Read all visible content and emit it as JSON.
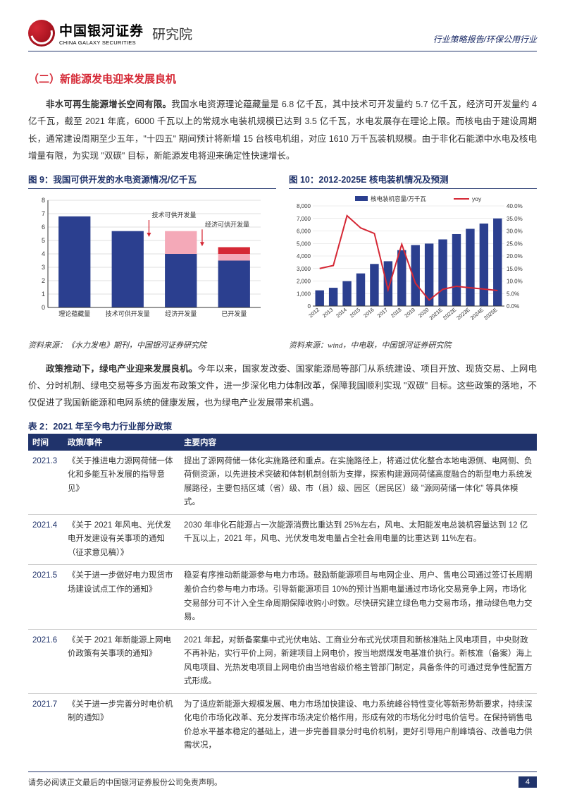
{
  "header": {
    "logo_cn": "中国银河证券",
    "logo_en": "CHINA GALAXY SECURITIES",
    "institute": "研究院",
    "right": "行业策略报告/环保公用行业"
  },
  "section_title": "（二）新能源发电迎来发展良机",
  "para1_lead": "非水可再生能源增长空间有限。",
  "para1_body": "我国水电资源理论蕴藏量是 6.8 亿千瓦，其中技术可开发量约 5.7 亿千瓦，经济可开发量约 4 亿千瓦，截至 2021 年底，6000 千瓦以上的常规水电装机规模已达到 3.5 亿千瓦，水电发展存在理论上限。而核电由于建设周期长，通常建设周期至少五年，\"十四五\" 期间预计将新增 15 台核电机组，对应 1610 万千瓦装机规模。由于非化石能源中水电及核电增量有限，为实现 \"双碳\" 目标，新能源发电将迎来确定性快速增长。",
  "chart9": {
    "title": "图 9：我国可供开发的水电资源情况/亿千瓦",
    "type": "bar",
    "categories": [
      "理论蕴藏量",
      "技术可供开发量",
      "经济开发量",
      "已开发量"
    ],
    "navy_values": [
      6.8,
      5.7,
      4.0,
      3.5
    ],
    "pink_values": [
      0,
      0,
      1.7,
      0.5
    ],
    "red_values": [
      0,
      0,
      0,
      0.5
    ],
    "arrow_labels": [
      "技术可供开发量",
      "经济可供开发量"
    ],
    "colors": {
      "navy": "#2b3f8f",
      "pink": "#f4a9b8",
      "red": "#d52835",
      "axis": "#333333",
      "grid": "#bfbfbf"
    },
    "ylim": [
      0,
      8
    ],
    "ytick_step": 1,
    "source": "资料来源：《水力发电》期刊，中国银河证券研究院"
  },
  "chart10": {
    "title": "图 10：2012-2025E 核电装机情况及预测",
    "type": "bar+line",
    "years": [
      "2012",
      "2013",
      "2014",
      "2015",
      "2016",
      "2017",
      "2018",
      "2019",
      "2020",
      "2021E",
      "2022E",
      "2023E",
      "2024E",
      "2025E"
    ],
    "bar_values": [
      1257,
      1461,
      1988,
      2608,
      3364,
      3582,
      4466,
      4874,
      4989,
      5326,
      5748,
      6170,
      6592,
      7000
    ],
    "yoy_values": [
      15.0,
      16.2,
      36.1,
      31.2,
      29.0,
      6.5,
      24.7,
      9.1,
      2.4,
      6.7,
      7.9,
      7.3,
      6.8,
      6.2
    ],
    "legend": {
      "bar": "核电装机容量/万千瓦",
      "line": "yoy"
    },
    "colors": {
      "bar": "#2b3f8f",
      "line": "#d52835",
      "axis": "#333333",
      "grid": "#d9d9d9"
    },
    "ylim_left": [
      0,
      8000
    ],
    "ytick_left_step": 1000,
    "ylim_right": [
      0,
      40
    ],
    "ytick_right_step": 5,
    "source": "资料来源：wind，中电联，中国银河证券研究院"
  },
  "para2_lead": "政策推动下，绿电产业迎来发展良机。",
  "para2_body": "今年以来，国家发改委、国家能源局等部门从系统建设、项目开放、现货交易、上网电价、分时机制、绿电交易等多方面发布政策文件，进一步深化电力体制改革，保障我国顺利实现 \"双碳\" 目标。这些政策的落地，不仅促进了我国新能源和电网系统的健康发展，也为绿电产业发展带来机遇。",
  "table2": {
    "title": "表 2：2021 年至今电力行业部分政策",
    "columns": [
      "时间",
      "政策/事件",
      "主要内容"
    ],
    "rows": [
      {
        "date": "2021.3",
        "event": "《关于推进电力源网荷储一体化和多能互补发展的指导意见》",
        "content": "提出了源网荷储一体化实施路径和重点。在实施路径上，将通过优化整合本地电源侧、电网侧、负荷侧资源，以先进技术突破和体制机制创新为支撑，探索构建源网荷储高度融合的新型电力系统发展路径，主要包括区域（省）级、市（县）级、园区（居民区）级 \"源网荷储一体化\" 等具体模式。"
      },
      {
        "date": "2021.4",
        "event": "《关于 2021 年风电、光伏发电开发建设有关事项的通知（征求意见稿）》",
        "content": "2030 年非化石能源占一次能源消费比重达到 25%左右，风电、太阳能发电总装机容量达到 12 亿千瓦以上，2021 年，风电、光伏发电发电量占全社会用电量的比重达到 11%左右。"
      },
      {
        "date": "2021.5",
        "event": "《关于进一步做好电力现货市场建设试点工作的通知》",
        "content": "稳妥有序推动新能源参与电力市场。鼓励新能源项目与电网企业、用户、售电公司通过签订长周期差价合约参与电力市场。引导新能源项目 10%的预计当期电量通过市场化交易竞争上网，市场化交易部分可不计入全生命周期保障收购小时数。尽快研究建立绿色电力交易市场，推动绿色电力交易。"
      },
      {
        "date": "2021.6",
        "event": "《关于 2021 年新能源上网电价政策有关事项的通知》",
        "content": "2021 年起，对新备案集中式光伏电站、工商业分布式光伏项目和新核准陆上风电项目，中央财政不再补贴，实行平价上网，新建项目上网电价，按当地燃煤发电基准价执行。新核准（备案）海上风电项目、光热发电项目上网电价由当地省级价格主管部门制定，具备条件的可通过竞争性配置方式形成。"
      },
      {
        "date": "2021.7",
        "event": "《关于进一步完善分时电价机制的通知》",
        "content": "为了适应新能源大规模发展、电力市场加快建设、电力系统峰谷特性变化等新形势新要求，持续深化电价市场化改革、充分发挥市场决定价格作用，形成有效的市场化分时电价信号。在保持销售电价总水平基本稳定的基础上，进一步完善目录分时电价机制，更好引导用户削峰填谷、改善电力供需状况，"
      }
    ]
  },
  "footer": {
    "text": "请务必阅读正文最后的中国银河证券股份公司免责声明。",
    "page": "4"
  }
}
